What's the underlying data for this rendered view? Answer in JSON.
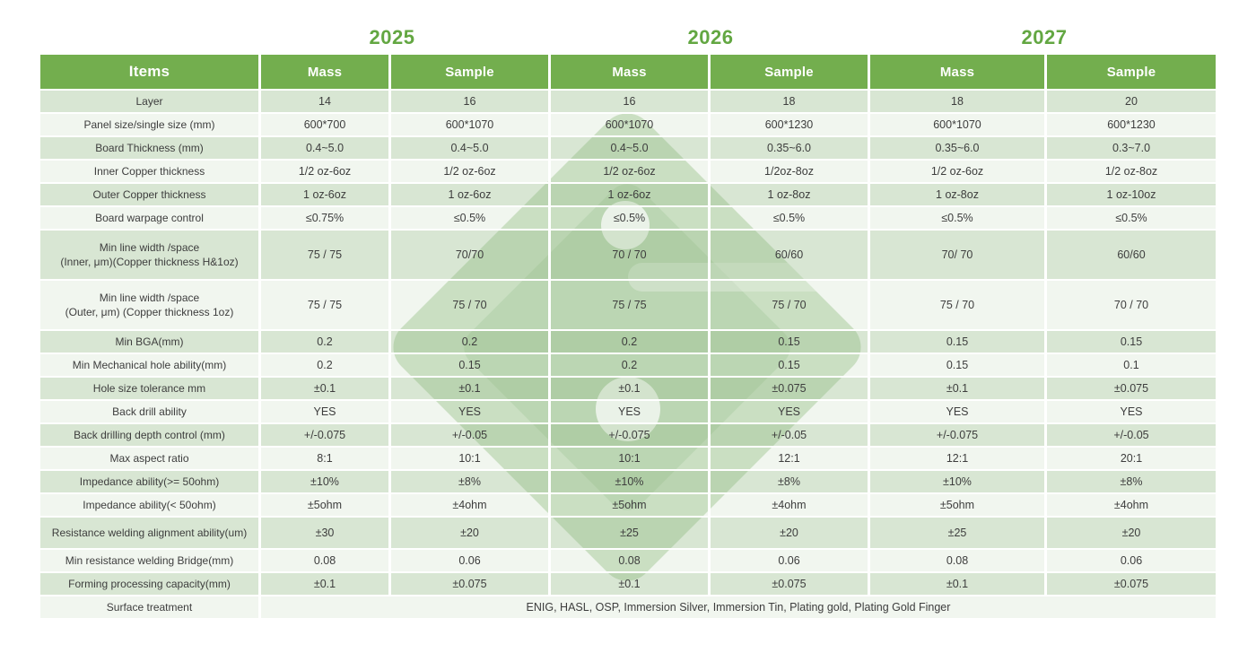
{
  "title_years": [
    "2025",
    "2026",
    "2027"
  ],
  "header": {
    "items": "Items",
    "columns": [
      "Mass",
      "Sample",
      "Mass",
      "Sample",
      "Mass",
      "Sample"
    ]
  },
  "rows": [
    {
      "label": "Layer",
      "values": [
        "14",
        "16",
        "16",
        "18",
        "18",
        "20"
      ]
    },
    {
      "label": "Panel size/single size (mm)",
      "values": [
        "600*700",
        "600*1070",
        "600*1070",
        "600*1230",
        "600*1070",
        "600*1230"
      ]
    },
    {
      "label": "Board Thickness (mm)",
      "values": [
        "0.4~5.0",
        "0.4~5.0",
        "0.4~5.0",
        "0.35~6.0",
        "0.35~6.0",
        "0.3~7.0"
      ]
    },
    {
      "label": "Inner Copper thickness",
      "values": [
        "1/2 oz-6oz",
        "1/2 oz-6oz",
        "1/2 oz-6oz",
        "1/2oz-8oz",
        "1/2 oz-6oz",
        "1/2 oz-8oz"
      ]
    },
    {
      "label": "Outer Copper thickness",
      "values": [
        "1 oz-6oz",
        "1 oz-6oz",
        "1 oz-6oz",
        "1 oz-8oz",
        "1 oz-8oz",
        "1 oz-10oz"
      ]
    },
    {
      "label": "Board warpage control",
      "values": [
        "≤0.75%",
        "≤0.5%",
        "≤0.5%",
        "≤0.5%",
        "≤0.5%",
        "≤0.5%"
      ]
    },
    {
      "label": "Min line width /space\n(Inner, μm)(Copper thickness H&1oz)",
      "values": [
        "75 / 75",
        "70/70",
        "70 / 70",
        "60/60",
        "70/ 70",
        "60/60"
      ]
    },
    {
      "label": "Min line width /space\n(Outer, μm) (Copper thickness 1oz)",
      "values": [
        "75 / 75",
        "75 / 70",
        "75 / 75",
        "75 / 70",
        "75 / 70",
        "70 / 70"
      ]
    },
    {
      "label": "Min BGA(mm)",
      "values": [
        "0.2",
        "0.2",
        "0.2",
        "0.15",
        "0.15",
        "0.15"
      ]
    },
    {
      "label": "Min Mechanical hole ability(mm)",
      "values": [
        "0.2",
        "0.15",
        "0.2",
        "0.15",
        "0.15",
        "0.1"
      ]
    },
    {
      "label": "Hole size tolerance mm",
      "values": [
        "±0.1",
        "±0.1",
        "±0.1",
        "±0.075",
        "±0.1",
        "±0.075"
      ]
    },
    {
      "label": "Back drill ability",
      "values": [
        "YES",
        "YES",
        "YES",
        "YES",
        "YES",
        "YES"
      ]
    },
    {
      "label": "Back drilling depth control (mm)",
      "values": [
        "+/-0.075",
        "+/-0.05",
        "+/-0.075",
        "+/-0.05",
        "+/-0.075",
        "+/-0.05"
      ]
    },
    {
      "label": "Max aspect ratio",
      "values": [
        "8:1",
        "10:1",
        "10:1",
        "12:1",
        "12:1",
        "20:1"
      ]
    },
    {
      "label": "Impedance ability(>= 50ohm)",
      "values": [
        "±10%",
        "±8%",
        "±10%",
        "±8%",
        "±10%",
        "±8%"
      ]
    },
    {
      "label": "Impedance ability(< 50ohm)",
      "values": [
        "±5ohm",
        "±4ohm",
        "±5ohm",
        "±4ohm",
        "±5ohm",
        "±4ohm"
      ]
    },
    {
      "label": "Resistance welding alignment ability(um)",
      "values": [
        "±30",
        "±20",
        "±25",
        "±20",
        "±25",
        "±20"
      ]
    },
    {
      "label": "Min resistance welding Bridge(mm)",
      "values": [
        "0.08",
        "0.06",
        "0.08",
        "0.06",
        "0.08",
        "0.06"
      ]
    },
    {
      "label": "Forming processing capacity(mm)",
      "values": [
        "±0.1",
        "±0.075",
        "±0.1",
        "±0.075",
        "±0.1",
        "±0.075"
      ]
    }
  ],
  "surface": {
    "label": "Surface treatment",
    "value": "ENIG, HASL, OSP, Immersion Silver, Immersion Tin, Plating gold, Plating Gold Finger"
  },
  "colors": {
    "header_green": "#73ae4e",
    "year_green": "#63a742",
    "row_stripe_dark": "#d9e7d3",
    "row_stripe_light": "#f0f5ee",
    "watermark_green": "#d3e5cd",
    "gridline": "#ffffff",
    "text": "#3d3d3d"
  }
}
